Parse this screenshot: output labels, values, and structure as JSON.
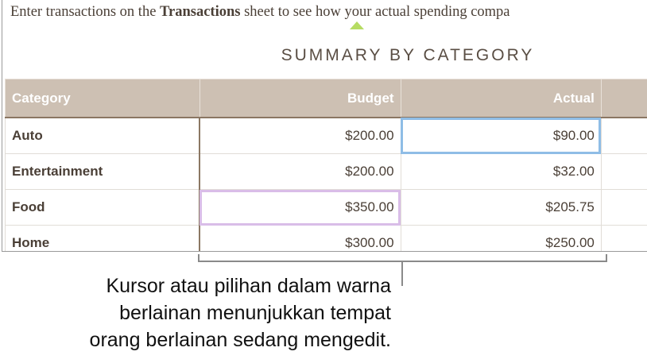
{
  "intro": {
    "before": "Enter transactions on the ",
    "bold": "Transactions",
    "after": " sheet to see how your actual spending compa"
  },
  "title": "SUMMARY BY CATEGORY",
  "table": {
    "headers": [
      "Category",
      "Budget",
      "Actual"
    ],
    "rows": [
      [
        "Auto",
        "$200.00",
        "$90.00"
      ],
      [
        "Entertainment",
        "$200.00",
        "$32.00"
      ],
      [
        "Food",
        "$350.00",
        "$205.75"
      ],
      [
        "Home",
        "$300.00",
        "$250.00"
      ]
    ]
  },
  "colors": {
    "header_bg": "#cdc0b3",
    "cursor_blue": "#8fbde6",
    "cursor_purple": "#d9bde8",
    "indicator": "#b6dc63"
  },
  "callout": [
    "Kursor atau pilihan dalam warna",
    "berlainan menunjukkan tempat",
    "orang berlainan sedang mengedit."
  ]
}
